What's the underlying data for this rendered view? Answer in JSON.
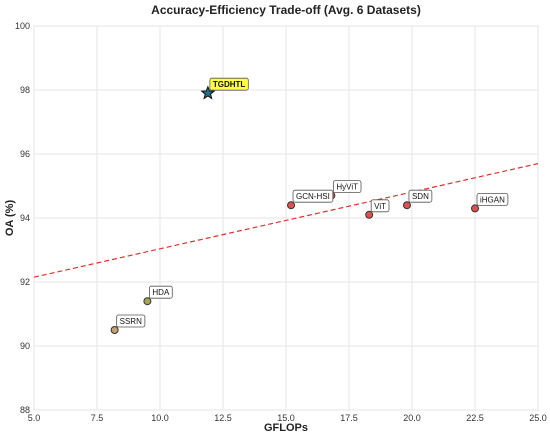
{
  "chart_data": {
    "type": "scatter",
    "title": "Accuracy-Efficiency Trade-off (Avg. 6 Datasets)",
    "xlabel": "GFLOPs",
    "ylabel": "OA (%)",
    "xlim": [
      5.0,
      25.0
    ],
    "ylim": [
      88,
      100
    ],
    "xticks": [
      "5.0",
      "7.5",
      "10.0",
      "12.5",
      "15.0",
      "17.5",
      "20.0",
      "22.5",
      "25.0"
    ],
    "yticks": [
      "88",
      "90",
      "92",
      "94",
      "96",
      "98",
      "100"
    ],
    "grid": true,
    "points": [
      {
        "label": "SSRN",
        "x": 8.2,
        "y": 90.5,
        "color": "#c8a070"
      },
      {
        "label": "HDA",
        "x": 9.5,
        "y": 91.4,
        "color": "#a5a555"
      },
      {
        "label": "GCN-HSI",
        "x": 15.2,
        "y": 94.4,
        "color": "#e05050"
      },
      {
        "label": "HyViT",
        "x": 16.8,
        "y": 94.7,
        "color": "#e05050"
      },
      {
        "label": "ViT",
        "x": 18.3,
        "y": 94.1,
        "color": "#e05050"
      },
      {
        "label": "SDN",
        "x": 19.8,
        "y": 94.4,
        "color": "#e05050"
      },
      {
        "label": "iHGAN",
        "x": 22.5,
        "y": 94.3,
        "color": "#e05050"
      }
    ],
    "highlight": {
      "label": "TGDHTL",
      "x": 11.9,
      "y": 97.9,
      "marker": "star",
      "color": "#1f6f8b",
      "label_bg": "#ffff44"
    },
    "trendline": {
      "x": [
        5.0,
        25.0
      ],
      "y": [
        92.15,
        95.7
      ],
      "color": "#e03030",
      "style": "dashed"
    }
  }
}
